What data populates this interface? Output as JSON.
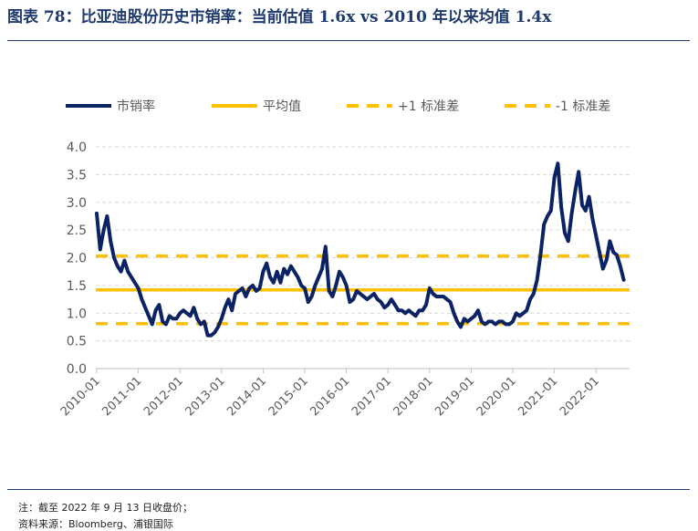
{
  "header": {
    "title": "图表 78：比亚迪股份历史市销率：当前估值 1.6x vs 2010 年以来均值 1.4x"
  },
  "footer": {
    "note": "注：截至 2022 年 9 月 13 日收盘价；",
    "source": "资料来源：Bloomberg、浦银国际"
  },
  "colors": {
    "title": "#1F3A6E",
    "series_line": "#0B2265",
    "mean_line": "#FFC000",
    "grid": "#D9D9D9",
    "axis_text": "#595959"
  },
  "chart_data": {
    "type": "line",
    "legend": [
      "市销率",
      "平均值",
      "+1 标准差",
      "-1 标准差"
    ],
    "legend_position": "top",
    "grid": true,
    "ylim": [
      0.0,
      4.0
    ],
    "yticks": [
      "0.0",
      "0.5",
      "1.0",
      "1.5",
      "2.0",
      "2.5",
      "3.0",
      "3.5",
      "4.0"
    ],
    "xticks": [
      "2010-01",
      "2011-01",
      "2012-01",
      "2013-01",
      "2014-01",
      "2015-01",
      "2016-01",
      "2017-01",
      "2018-01",
      "2019-01",
      "2020-01",
      "2021-01",
      "2022-01"
    ],
    "mean": 1.42,
    "plus_1sd": 2.03,
    "minus_1sd": 0.81,
    "series": [
      {
        "name": "市销率",
        "x": [
          "2010-01",
          "2010-02",
          "2010-03",
          "2010-04",
          "2010-05",
          "2010-06",
          "2010-07",
          "2010-08",
          "2010-09",
          "2010-10",
          "2010-11",
          "2010-12",
          "2011-01",
          "2011-02",
          "2011-03",
          "2011-04",
          "2011-05",
          "2011-06",
          "2011-07",
          "2011-08",
          "2011-09",
          "2011-10",
          "2011-11",
          "2011-12",
          "2012-01",
          "2012-02",
          "2012-03",
          "2012-04",
          "2012-05",
          "2012-06",
          "2012-07",
          "2012-08",
          "2012-09",
          "2012-10",
          "2012-11",
          "2012-12",
          "2013-01",
          "2013-02",
          "2013-03",
          "2013-04",
          "2013-05",
          "2013-06",
          "2013-07",
          "2013-08",
          "2013-09",
          "2013-10",
          "2013-11",
          "2013-12",
          "2014-01",
          "2014-02",
          "2014-03",
          "2014-04",
          "2014-05",
          "2014-06",
          "2014-07",
          "2014-08",
          "2014-09",
          "2014-10",
          "2014-11",
          "2014-12",
          "2015-01",
          "2015-02",
          "2015-03",
          "2015-04",
          "2015-05",
          "2015-06",
          "2015-07",
          "2015-08",
          "2015-09",
          "2015-10",
          "2015-11",
          "2015-12",
          "2016-01",
          "2016-02",
          "2016-03",
          "2016-04",
          "2016-05",
          "2016-06",
          "2016-07",
          "2016-08",
          "2016-09",
          "2016-10",
          "2016-11",
          "2016-12",
          "2017-01",
          "2017-02",
          "2017-03",
          "2017-04",
          "2017-05",
          "2017-06",
          "2017-07",
          "2017-08",
          "2017-09",
          "2017-10",
          "2017-11",
          "2017-12",
          "2018-01",
          "2018-02",
          "2018-03",
          "2018-04",
          "2018-05",
          "2018-06",
          "2018-07",
          "2018-08",
          "2018-09",
          "2018-10",
          "2018-11",
          "2018-12",
          "2019-01",
          "2019-02",
          "2019-03",
          "2019-04",
          "2019-05",
          "2019-06",
          "2019-07",
          "2019-08",
          "2019-09",
          "2019-10",
          "2019-11",
          "2019-12",
          "2020-01",
          "2020-02",
          "2020-03",
          "2020-04",
          "2020-05",
          "2020-06",
          "2020-07",
          "2020-08",
          "2020-09",
          "2020-10",
          "2020-11",
          "2020-12",
          "2021-01",
          "2021-02",
          "2021-03",
          "2021-04",
          "2021-05",
          "2021-06",
          "2021-07",
          "2021-08",
          "2021-09",
          "2021-10",
          "2021-11",
          "2021-12",
          "2022-01",
          "2022-02",
          "2022-03",
          "2022-04",
          "2022-05",
          "2022-06",
          "2022-07",
          "2022-08",
          "2022-09"
        ],
        "values": [
          2.8,
          2.15,
          2.5,
          2.75,
          2.3,
          2.0,
          1.85,
          1.75,
          1.95,
          1.75,
          1.65,
          1.55,
          1.45,
          1.25,
          1.1,
          0.95,
          0.8,
          1.05,
          1.15,
          0.85,
          0.8,
          0.95,
          0.9,
          0.9,
          1.0,
          1.05,
          1.0,
          0.95,
          1.1,
          0.9,
          0.8,
          0.85,
          0.6,
          0.6,
          0.65,
          0.75,
          0.9,
          1.1,
          1.25,
          1.05,
          1.35,
          1.4,
          1.45,
          1.3,
          1.45,
          1.5,
          1.4,
          1.45,
          1.75,
          1.9,
          1.65,
          1.55,
          1.75,
          1.55,
          1.8,
          1.7,
          1.85,
          1.75,
          1.65,
          1.5,
          1.45,
          1.2,
          1.3,
          1.5,
          1.65,
          1.8,
          2.2,
          1.4,
          1.3,
          1.5,
          1.75,
          1.65,
          1.5,
          1.2,
          1.25,
          1.4,
          1.35,
          1.3,
          1.25,
          1.3,
          1.35,
          1.25,
          1.2,
          1.1,
          1.15,
          1.25,
          1.15,
          1.05,
          1.05,
          1.0,
          1.05,
          1.0,
          0.95,
          1.05,
          1.05,
          1.15,
          1.45,
          1.35,
          1.3,
          1.3,
          1.3,
          1.25,
          1.2,
          1.0,
          0.85,
          0.75,
          0.9,
          0.85,
          0.9,
          0.95,
          1.05,
          0.85,
          0.8,
          0.85,
          0.85,
          0.8,
          0.85,
          0.85,
          0.8,
          0.8,
          0.85,
          1.0,
          0.95,
          1.0,
          1.05,
          1.25,
          1.35,
          1.6,
          2.05,
          2.6,
          2.75,
          2.85,
          3.45,
          3.7,
          2.9,
          2.45,
          2.3,
          2.8,
          3.2,
          3.55,
          2.95,
          2.85,
          3.1,
          2.7,
          2.4,
          2.1,
          1.8,
          1.95,
          2.3,
          2.1,
          2.05,
          1.85,
          1.6
        ]
      },
      {
        "name": "平均值"
      },
      {
        "name": "+1 标准差"
      },
      {
        "name": "-1 标准差"
      }
    ]
  }
}
